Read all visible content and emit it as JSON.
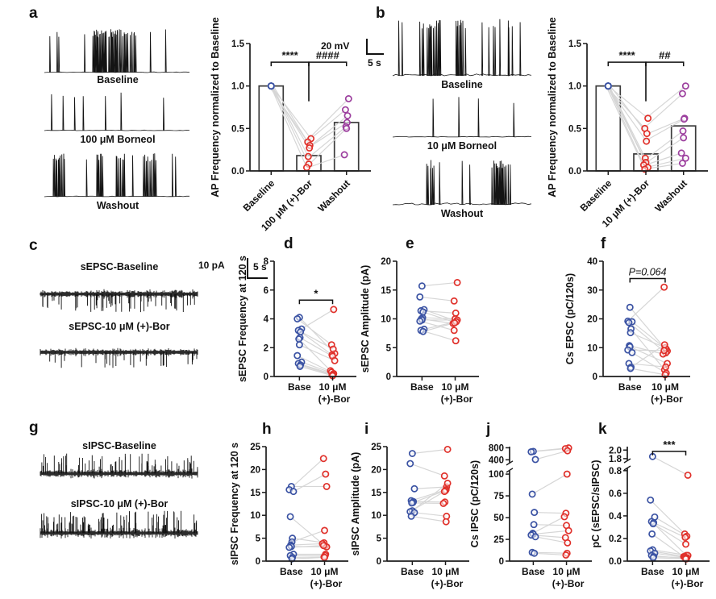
{
  "figure": {
    "colors": {
      "blue": "#3a52a3",
      "red": "#e0312b",
      "purple": "#9c3f9e",
      "pair_line": "#d6d6d6",
      "axis": "#1c1c1c",
      "bar_fill": "#ffffff",
      "bar_stroke": "#3b3b3b"
    },
    "panels": {
      "a": {
        "letter": "a",
        "traces": [
          {
            "label": "Baseline"
          },
          {
            "label": "100 μM Borneol"
          },
          {
            "label": "Washout"
          }
        ],
        "scalebar": {
          "amp": "20 mV",
          "time": "5 s"
        }
      },
      "b": {
        "letter": "b",
        "traces": [
          {
            "label": "Baseline"
          },
          {
            "label": "10 μM Borneol"
          },
          {
            "label": "Washout"
          }
        ]
      },
      "c": {
        "letter": "c",
        "traces": [
          {
            "label": "sEPSC-Baseline"
          },
          {
            "label": "sEPSC-10 μM (+)-Bor"
          }
        ],
        "scalebar": {
          "amp": "10 pA",
          "time": "5 s"
        }
      },
      "d": {
        "letter": "d"
      },
      "e": {
        "letter": "e"
      },
      "f": {
        "letter": "f"
      },
      "g": {
        "letter": "g",
        "traces": [
          {
            "label": "sIPSC-Baseline"
          },
          {
            "label": "sIPSC-10 μM (+)-Bor"
          }
        ]
      },
      "h": {
        "letter": "h"
      },
      "i": {
        "letter": "i"
      },
      "j": {
        "letter": "j"
      },
      "k": {
        "letter": "k"
      }
    }
  },
  "chart_data": [
    {
      "id": "a",
      "type": "bar-scatter",
      "ylabel": "AP Frequency normalized to Baseline",
      "categories": [
        "Baseline",
        "100 μM (+)-Bor",
        "Washout"
      ],
      "bar_values": [
        1.0,
        0.18,
        0.57
      ],
      "pairs": [
        [
          1.0,
          0.38,
          0.85
        ],
        [
          1.0,
          0.34,
          0.72
        ],
        [
          1.0,
          0.3,
          0.65
        ],
        [
          1.0,
          0.27,
          0.57
        ],
        [
          1.0,
          0.17,
          0.52
        ],
        [
          1.0,
          0.08,
          0.5
        ],
        [
          1.0,
          0.04,
          0.19
        ]
      ],
      "point_colors": [
        "#3a52a3",
        "#e0312b",
        "#9c3f9e"
      ],
      "ylim": [
        0,
        1.5
      ],
      "yticks": [
        {
          "v": 0,
          "t": "0.0"
        },
        {
          "v": 0.5,
          "t": "0.5"
        },
        {
          "v": 1,
          "t": "1.0"
        },
        {
          "v": 1.5,
          "t": "1.5"
        }
      ],
      "sig": [
        {
          "a": 0,
          "b": 1,
          "label": "****",
          "v": 1.28
        },
        {
          "a": 1,
          "b": 2,
          "label": "####",
          "v": 1.28
        }
      ],
      "drop": {
        "col": 1,
        "fromV": 1.28,
        "toV": 0.82
      }
    },
    {
      "id": "b",
      "type": "bar-scatter",
      "ylabel": "AP Frequency normalized to Baseline",
      "categories": [
        "Baseline",
        "10 μM (+)-Bor",
        "Washout"
      ],
      "bar_values": [
        1.0,
        0.2,
        0.53
      ],
      "pairs": [
        [
          1.0,
          0.62,
          1.0
        ],
        [
          1.0,
          0.5,
          0.91
        ],
        [
          1.0,
          0.44,
          0.62
        ],
        [
          1.0,
          0.35,
          0.61
        ],
        [
          1.0,
          0.15,
          0.47
        ],
        [
          1.0,
          0.1,
          0.39
        ],
        [
          1.0,
          0.07,
          0.21
        ],
        [
          1.0,
          0.04,
          0.15
        ],
        [
          1.0,
          0.02,
          0.09
        ]
      ],
      "point_colors": [
        "#3a52a3",
        "#e0312b",
        "#9c3f9e"
      ],
      "ylim": [
        0,
        1.5
      ],
      "yticks": [
        {
          "v": 0,
          "t": "0.0"
        },
        {
          "v": 0.5,
          "t": "0.5"
        },
        {
          "v": 1,
          "t": "1.0"
        },
        {
          "v": 1.5,
          "t": "1.5"
        }
      ],
      "sig": [
        {
          "a": 0,
          "b": 1,
          "label": "****",
          "v": 1.28
        },
        {
          "a": 1,
          "b": 2,
          "label": "##",
          "v": 1.28
        }
      ],
      "drop": {
        "col": 1,
        "fromV": 1.28,
        "toV": 0.82
      }
    },
    {
      "id": "d",
      "type": "paired-scatter",
      "ylabel": "sEPSC Frequency at 120 s",
      "categories": [
        "Base",
        "10 μM (+)-Bor"
      ],
      "xlabels": [
        [
          "Base"
        ],
        [
          "10 μM",
          "(+)-Bor"
        ]
      ],
      "pairs": [
        [
          4.1,
          1.6
        ],
        [
          4.0,
          2.2
        ],
        [
          3.3,
          4.65
        ],
        [
          3.2,
          1.9
        ],
        [
          3.1,
          1.5
        ],
        [
          2.7,
          1.4
        ],
        [
          2.6,
          0.4
        ],
        [
          2.2,
          1.1
        ],
        [
          1.45,
          0.3
        ],
        [
          1.0,
          0.2
        ],
        [
          0.9,
          0.15
        ],
        [
          0.8,
          0.1
        ],
        [
          0.7,
          0.05
        ]
      ],
      "point_colors": [
        "#3a52a3",
        "#e0312b"
      ],
      "ylim": [
        0,
        8
      ],
      "yticks": [
        {
          "v": 0,
          "t": "0"
        },
        {
          "v": 2,
          "t": "2"
        },
        {
          "v": 4,
          "t": "4"
        },
        {
          "v": 6,
          "t": "6"
        },
        {
          "v": 8,
          "t": "8"
        }
      ],
      "sig": [
        {
          "a": 0,
          "b": 1,
          "label": "*",
          "v": 5.3
        }
      ]
    },
    {
      "id": "e",
      "type": "paired-scatter",
      "ylabel": "sEPSC Amplitude (pA)",
      "categories": [
        "Base",
        "10 μM (+)-Bor"
      ],
      "xlabels": [
        [
          "Base"
        ],
        [
          "10 μM",
          "(+)-Bor"
        ]
      ],
      "pairs": [
        [
          15.7,
          16.3
        ],
        [
          13.8,
          13.1
        ],
        [
          11.6,
          9.6
        ],
        [
          11.4,
          11.0
        ],
        [
          11.2,
          9.4
        ],
        [
          10.2,
          10.0
        ],
        [
          10.0,
          9.2
        ],
        [
          9.8,
          9.8
        ],
        [
          9.6,
          8.0
        ],
        [
          8.2,
          9.5
        ],
        [
          8.0,
          6.2
        ],
        [
          7.8,
          9.3
        ]
      ],
      "point_colors": [
        "#3a52a3",
        "#e0312b"
      ],
      "ylim": [
        0,
        20
      ],
      "yticks": [
        {
          "v": 0,
          "t": "0"
        },
        {
          "v": 5,
          "t": "5"
        },
        {
          "v": 10,
          "t": "10"
        },
        {
          "v": 15,
          "t": "15"
        },
        {
          "v": 20,
          "t": "20"
        }
      ]
    },
    {
      "id": "f",
      "type": "paired-scatter",
      "ylabel": "Cs EPSC (pC/120s)",
      "categories": [
        "Base",
        "10 μM (+)-Bor"
      ],
      "xlabels": [
        [
          "Base"
        ],
        [
          "10 μM",
          "(+)-Bor"
        ]
      ],
      "pairs": [
        [
          24,
          8.8
        ],
        [
          19.2,
          31
        ],
        [
          19,
          9.5
        ],
        [
          18.7,
          8.2
        ],
        [
          16.5,
          2.3
        ],
        [
          15.2,
          10
        ],
        [
          10.7,
          7.8
        ],
        [
          10.3,
          4.5
        ],
        [
          9.2,
          9
        ],
        [
          8.3,
          1.2
        ],
        [
          4.5,
          3.3
        ],
        [
          3.2,
          11
        ],
        [
          2.8,
          0.6
        ]
      ],
      "point_colors": [
        "#3a52a3",
        "#e0312b"
      ],
      "ylim": [
        0,
        40
      ],
      "yticks": [
        {
          "v": 0,
          "t": "0"
        },
        {
          "v": 10,
          "t": "10"
        },
        {
          "v": 20,
          "t": "20"
        },
        {
          "v": 30,
          "t": "30"
        },
        {
          "v": 40,
          "t": "40"
        }
      ],
      "sig": [
        {
          "a": 0,
          "b": 1,
          "label": "P=0.064",
          "v": 34,
          "italic": true
        }
      ]
    },
    {
      "id": "h",
      "type": "paired-scatter",
      "ylabel": "sIPSC Frequency at 120 s",
      "categories": [
        "Base",
        "10 μM (+)-Bor"
      ],
      "xlabels": [
        [
          "Base"
        ],
        [
          "10 μM",
          "(+)-Bor"
        ]
      ],
      "pairs": [
        [
          16.3,
          16.3
        ],
        [
          15.6,
          22.4
        ],
        [
          15.2,
          19.0
        ],
        [
          9.7,
          3.3
        ],
        [
          5.0,
          4.0
        ],
        [
          4.2,
          6.7
        ],
        [
          3.5,
          3.8
        ],
        [
          3.2,
          3.1
        ],
        [
          3.0,
          3.4
        ],
        [
          1.5,
          1.5
        ],
        [
          1.2,
          1.2
        ],
        [
          0.8,
          0.9
        ],
        [
          0.5,
          0.8
        ]
      ],
      "point_colors": [
        "#3a52a3",
        "#e0312b"
      ],
      "ylim": [
        0,
        25
      ],
      "yticks": [
        {
          "v": 0,
          "t": "0"
        },
        {
          "v": 5,
          "t": "5"
        },
        {
          "v": 10,
          "t": "10"
        },
        {
          "v": 15,
          "t": "15"
        },
        {
          "v": 20,
          "t": "20"
        },
        {
          "v": 25,
          "t": "25"
        }
      ]
    },
    {
      "id": "i",
      "type": "paired-scatter",
      "ylabel": "sIPSC Amplitude (pA)",
      "categories": [
        "Base",
        "10 μM (+)-Bor"
      ],
      "xlabels": [
        [
          "Base"
        ],
        [
          "10 μM",
          "(+)-Bor"
        ]
      ],
      "pairs": [
        [
          23.5,
          24.4
        ],
        [
          21.3,
          18.6
        ],
        [
          15.8,
          16.2
        ],
        [
          13.2,
          15.6
        ],
        [
          13.0,
          12.9
        ],
        [
          12.8,
          15.4
        ],
        [
          12.7,
          12.6
        ],
        [
          11.0,
          17.0
        ],
        [
          10.8,
          15.2
        ],
        [
          10.6,
          9.8
        ],
        [
          9.8,
          8.6
        ]
      ],
      "point_colors": [
        "#3a52a3",
        "#e0312b"
      ],
      "ylim": [
        0,
        25
      ],
      "yticks": [
        {
          "v": 0,
          "t": "0"
        },
        {
          "v": 5,
          "t": "5"
        },
        {
          "v": 10,
          "t": "10"
        },
        {
          "v": 15,
          "t": "15"
        },
        {
          "v": 20,
          "t": "20"
        },
        {
          "v": 25,
          "t": "25"
        }
      ]
    },
    {
      "id": "j",
      "type": "paired-scatter",
      "ylabel": "Cs IPSC (pC/120s)",
      "categories": [
        "Base",
        "10 μM (+)-Bor"
      ],
      "xlabels": [
        [
          "Base"
        ],
        [
          "10 μM",
          "(+)-Bor"
        ]
      ],
      "pairs": [
        [
          680,
          795
        ],
        [
          665,
          770
        ],
        [
          410,
          700
        ],
        [
          77,
          100
        ],
        [
          56,
          55
        ],
        [
          42,
          41
        ],
        [
          32,
          51
        ],
        [
          31,
          35
        ],
        [
          30,
          27
        ],
        [
          28,
          21
        ],
        [
          10,
          9
        ],
        [
          9,
          7
        ]
      ],
      "point_colors": [
        "#3a52a3",
        "#e0312b"
      ],
      "ylim": [
        0,
        800
      ],
      "axis_break": {
        "segments": [
          {
            "range": [
              0,
              100
            ],
            "frac": [
              0,
              0.76
            ]
          },
          {
            "range": [
              400,
              800
            ],
            "frac": [
              0.885,
              0.99
            ]
          }
        ],
        "mark": 0.825
      },
      "yticks": [
        {
          "v": 0,
          "t": "0"
        },
        {
          "v": 25,
          "t": "25"
        },
        {
          "v": 50,
          "t": "50"
        },
        {
          "v": 75,
          "t": "75"
        },
        {
          "v": 100,
          "t": "100"
        },
        {
          "v": 400,
          "t": "400"
        },
        {
          "v": 800,
          "t": "800"
        }
      ]
    },
    {
      "id": "k",
      "type": "paired-scatter",
      "ylabel": "pC (sEPSC/sIPSC)",
      "categories": [
        "Base",
        "10 μM (+)-Bor"
      ],
      "xlabels": [
        [
          "Base"
        ],
        [
          "10 μM",
          "(+)-Bor"
        ]
      ],
      "pairs": [
        [
          1.85,
          0.76
        ],
        [
          0.54,
          0.24
        ],
        [
          0.39,
          0.22
        ],
        [
          0.35,
          0.05
        ],
        [
          0.34,
          0.21
        ],
        [
          0.33,
          0.15
        ],
        [
          0.24,
          0.04
        ],
        [
          0.1,
          0.05
        ],
        [
          0.09,
          0.04
        ],
        [
          0.07,
          0.03
        ],
        [
          0.05,
          0.02
        ],
        [
          0.04,
          0.03
        ],
        [
          0.03,
          0.02
        ]
      ],
      "point_colors": [
        "#3a52a3",
        "#e0312b"
      ],
      "ylim": [
        0,
        2.0
      ],
      "axis_break": {
        "segments": [
          {
            "range": [
              0,
              0.8
            ],
            "frac": [
              0,
              0.79
            ]
          },
          {
            "range": [
              1.8,
              2.0
            ],
            "frac": [
              0.895,
              0.97
            ]
          }
        ],
        "mark": 0.845
      },
      "yticks": [
        {
          "v": 0,
          "t": "0.0"
        },
        {
          "v": 0.2,
          "t": "0.2"
        },
        {
          "v": 0.4,
          "t": "0.4"
        },
        {
          "v": 0.6,
          "t": "0.6"
        },
        {
          "v": 0.8,
          "t": "0.8"
        },
        {
          "v": 1.8,
          "t": "1.8"
        },
        {
          "v": 2.0,
          "t": "2.0"
        }
      ],
      "sig": [
        {
          "a": 0,
          "b": 1,
          "label": "***",
          "v": 1.97
        }
      ]
    }
  ]
}
